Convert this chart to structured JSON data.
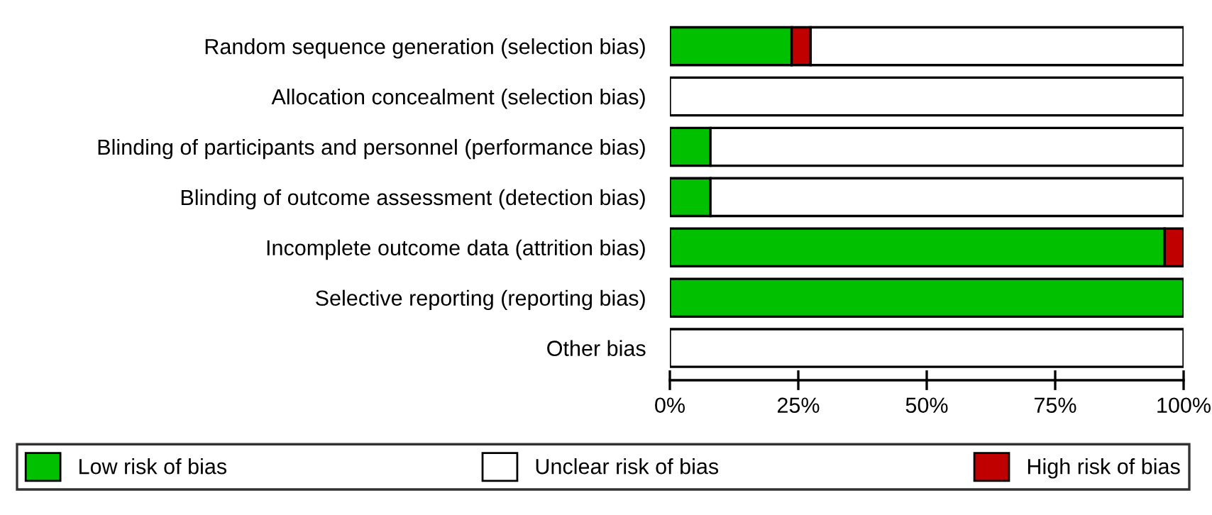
{
  "chart_data": {
    "type": "bar",
    "orientation": "horizontal",
    "stacked": true,
    "categories": [
      "Random sequence generation (selection bias)",
      "Allocation concealment (selection bias)",
      "Blinding of participants and personnel (performance bias)",
      "Blinding of outcome assessment (detection bias)",
      "Incomplete outcome data (attrition bias)",
      "Selective reporting (reporting bias)",
      "Other bias"
    ],
    "series": [
      {
        "name": "Low risk of bias",
        "color": "#00c000",
        "values": [
          23.7,
          0,
          7.9,
          7.9,
          96.3,
          100,
          0
        ]
      },
      {
        "name": "High risk of bias",
        "color": "#c00000",
        "values": [
          3.7,
          0,
          0,
          0,
          3.7,
          0,
          0
        ]
      },
      {
        "name": "Unclear risk of bias",
        "color": "#ffffff",
        "values": [
          72.6,
          100,
          92.1,
          92.1,
          0,
          0,
          100
        ]
      }
    ],
    "xlim": [
      0,
      100
    ],
    "xticks": [
      {
        "value": 0,
        "label": "0%"
      },
      {
        "value": 25,
        "label": "25%"
      },
      {
        "value": 50,
        "label": "50%"
      },
      {
        "value": 75,
        "label": "75%"
      },
      {
        "value": 100,
        "label": "100%"
      }
    ],
    "grid": false,
    "legend": "bottom"
  }
}
